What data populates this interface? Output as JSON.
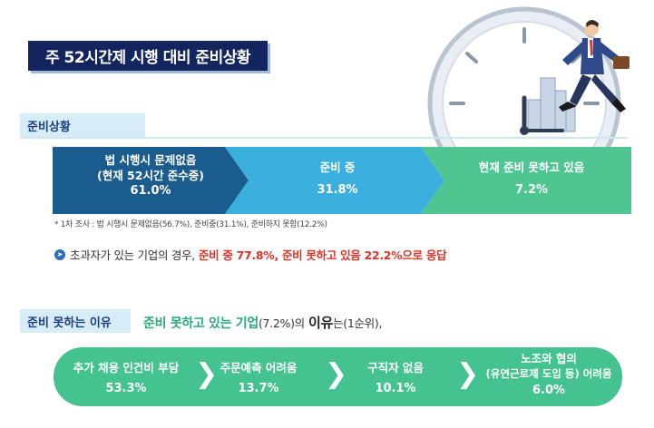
{
  "title": "주 52시간제 시행 대비 준비상황",
  "readiness_tag": "준비상황",
  "reasons_tag": "준비 못하는 이유",
  "chart_data": [
    {
      "type": "chevron-flow",
      "categories": [
        "법 시행시 문제없음",
        "준비 중",
        "현재 준비 못하고 있음"
      ],
      "category_notes": [
        "(현재 52시간 준수중)",
        "",
        ""
      ],
      "values": [
        61.0,
        31.8,
        7.2
      ],
      "value_labels": [
        "61.0%",
        "31.8%",
        "7.2%"
      ],
      "colors": [
        "#1a5c8e",
        "#3bb0de",
        "#4fc691"
      ]
    },
    {
      "type": "flow",
      "categories": [
        "추가 채용 인건비 부담",
        "주문예측 어려움",
        "구직자 없음",
        "노조와 협의"
      ],
      "category_notes": [
        "",
        "",
        "",
        "(유연근로제 도입 등) 어려움"
      ],
      "values": [
        53.3,
        13.7,
        10.1,
        6.0
      ],
      "value_labels": [
        "53.3%",
        "13.7%",
        "10.1%",
        "6.0%"
      ],
      "colors": [
        "#44c28f"
      ]
    }
  ],
  "footnote": "* 1차 조사 : 법 시행시 문제없음(56.7%), 준비중(31.1%), 준비하지 못함(12.2%)",
  "summary": {
    "prefix": "초과자가 있는 기업의 경우,",
    "highlight": "준비 중 77.8%, 준비 못하고 있음 22.2%으로 응답"
  },
  "reason_heading": {
    "part1": "준비 못하고 있는 기업",
    "part2": "(7.2%)",
    "part3": "의",
    "part4": "이유",
    "part5": "는(1순위),"
  }
}
